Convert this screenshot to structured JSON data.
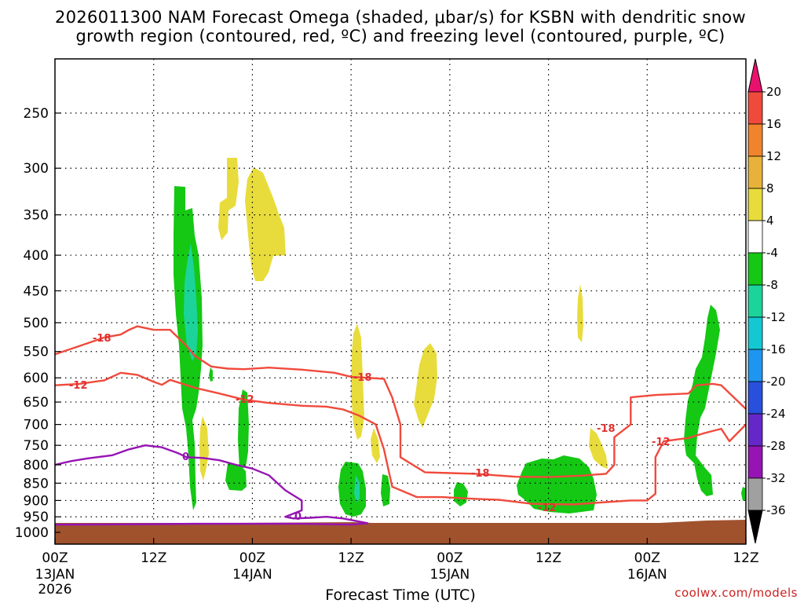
{
  "chart_data": {
    "type": "time-height cross section",
    "title_line1": "2026011300 NAM Forecast Omega (shaded, μbar/s) for KSBN with dendritic snow",
    "title_line2": "growth region (contoured, red, ºC) and freezing level (contoured, purple, ºC)",
    "xlabel": "Forecast Time (UTC)",
    "credit": "coolwx.com/models",
    "x_ticks": [
      {
        "hour": 0,
        "line1": "00Z",
        "line2": "13JAN",
        "line3": "2026"
      },
      {
        "hour": 12,
        "line1": "12Z",
        "line2": "",
        "line3": ""
      },
      {
        "hour": 24,
        "line1": "00Z",
        "line2": "14JAN",
        "line3": ""
      },
      {
        "hour": 36,
        "line1": "12Z",
        "line2": "",
        "line3": ""
      },
      {
        "hour": 48,
        "line1": "00Z",
        "line2": "15JAN",
        "line3": ""
      },
      {
        "hour": 60,
        "line1": "12Z",
        "line2": "",
        "line3": ""
      },
      {
        "hour": 72,
        "line1": "00Z",
        "line2": "16JAN",
        "line3": ""
      },
      {
        "hour": 84,
        "line1": "12Z",
        "line2": "",
        "line3": ""
      }
    ],
    "x_range_hours": [
      0,
      84
    ],
    "y_ticks_hpa": [
      250,
      300,
      350,
      400,
      450,
      500,
      550,
      600,
      650,
      700,
      750,
      800,
      850,
      900,
      950,
      1000
    ],
    "y_range_hpa": [
      200,
      1020
    ],
    "surface_hpa": 975,
    "colorbar": {
      "labels": [
        "20",
        "16",
        "12",
        "8",
        "4",
        "-4",
        "-8",
        "-12",
        "-16",
        "-20",
        "-24",
        "-28",
        "-32",
        "-36"
      ],
      "colors": [
        "#e8126e",
        "#f04a3c",
        "#f0842c",
        "#e8b23a",
        "#e8dc3c",
        "#ffffff",
        "#14c814",
        "#1cd49a",
        "#14c8d2",
        "#1e96f0",
        "#2850dc",
        "#6428c8",
        "#9614b4",
        "#a0a0a0",
        "#000000"
      ]
    },
    "contour_labels": {
      "dgz_cold": "-18",
      "dgz_warm": "-12",
      "freezing": "0"
    },
    "series": [
      {
        "name": "DGZ -18C upper contour",
        "color": "#f04a3c",
        "points": [
          [
            0,
            555
          ],
          [
            3,
            540
          ],
          [
            6,
            525
          ],
          [
            8,
            520
          ],
          [
            9,
            512
          ],
          [
            10,
            506
          ],
          [
            12,
            512
          ],
          [
            14,
            512
          ],
          [
            16,
            540
          ],
          [
            17,
            558
          ],
          [
            19,
            578
          ],
          [
            21,
            582
          ],
          [
            23,
            583
          ],
          [
            26,
            580
          ],
          [
            30,
            584
          ],
          [
            34,
            590
          ],
          [
            36,
            598
          ],
          [
            38,
            600
          ],
          [
            40,
            602
          ],
          [
            41,
            640
          ],
          [
            42,
            700
          ],
          [
            42,
            780
          ],
          [
            45,
            820
          ],
          [
            48,
            822
          ],
          [
            51,
            824
          ],
          [
            56,
            832
          ],
          [
            60,
            833
          ],
          [
            64,
            829
          ],
          [
            67,
            824
          ],
          [
            68,
            800
          ],
          [
            68,
            730
          ],
          [
            70,
            700
          ],
          [
            70,
            640
          ],
          [
            73,
            635
          ],
          [
            77,
            632
          ],
          [
            78,
            615
          ],
          [
            80,
            612
          ],
          [
            81,
            615
          ],
          [
            84,
            665
          ]
        ]
      },
      {
        "name": "DGZ -12C lower contour",
        "color": "#f04a3c",
        "points": [
          [
            0,
            615
          ],
          [
            3,
            612
          ],
          [
            6,
            605
          ],
          [
            8,
            590
          ],
          [
            10,
            594
          ],
          [
            12,
            608
          ],
          [
            13,
            614
          ],
          [
            14,
            604
          ],
          [
            17,
            620
          ],
          [
            20,
            632
          ],
          [
            23,
            645
          ],
          [
            26,
            652
          ],
          [
            30,
            658
          ],
          [
            33,
            660
          ],
          [
            35,
            666
          ],
          [
            37,
            680
          ],
          [
            39,
            700
          ],
          [
            40,
            760
          ],
          [
            41,
            860
          ],
          [
            44,
            890
          ],
          [
            47,
            890
          ],
          [
            51,
            895
          ],
          [
            54,
            898
          ],
          [
            58,
            910
          ],
          [
            63,
            912
          ],
          [
            67,
            905
          ],
          [
            70,
            900
          ],
          [
            72,
            900
          ],
          [
            73,
            880
          ],
          [
            73,
            780
          ],
          [
            74,
            740
          ],
          [
            77,
            732
          ],
          [
            79,
            720
          ],
          [
            81,
            710
          ],
          [
            82,
            740
          ],
          [
            84,
            700
          ]
        ]
      },
      {
        "name": "Freezing level 0C",
        "color": "#9614b4",
        "points": [
          [
            0,
            800
          ],
          [
            2,
            790
          ],
          [
            4,
            783
          ],
          [
            7,
            775
          ],
          [
            9,
            760
          ],
          [
            11,
            750
          ],
          [
            13,
            755
          ],
          [
            15,
            770
          ],
          [
            16,
            780
          ],
          [
            18,
            782
          ],
          [
            20,
            788
          ],
          [
            22,
            800
          ],
          [
            24,
            810
          ],
          [
            26,
            828
          ],
          [
            28,
            870
          ],
          [
            30,
            900
          ],
          [
            30,
            930
          ],
          [
            28,
            950
          ],
          [
            29,
            955
          ],
          [
            31,
            953
          ],
          [
            33,
            950
          ],
          [
            35,
            955
          ],
          [
            37,
            965
          ],
          [
            38,
            970
          ],
          [
            36,
            975
          ],
          [
            30,
            972
          ],
          [
            24,
            972
          ],
          [
            17,
            972
          ],
          [
            12,
            973
          ],
          [
            6,
            974
          ],
          [
            0,
            975
          ]
        ]
      }
    ],
    "shaded_regions_note": "omega shading blobs: negative (ascent) green/teal, positive (descent) yellow"
  }
}
